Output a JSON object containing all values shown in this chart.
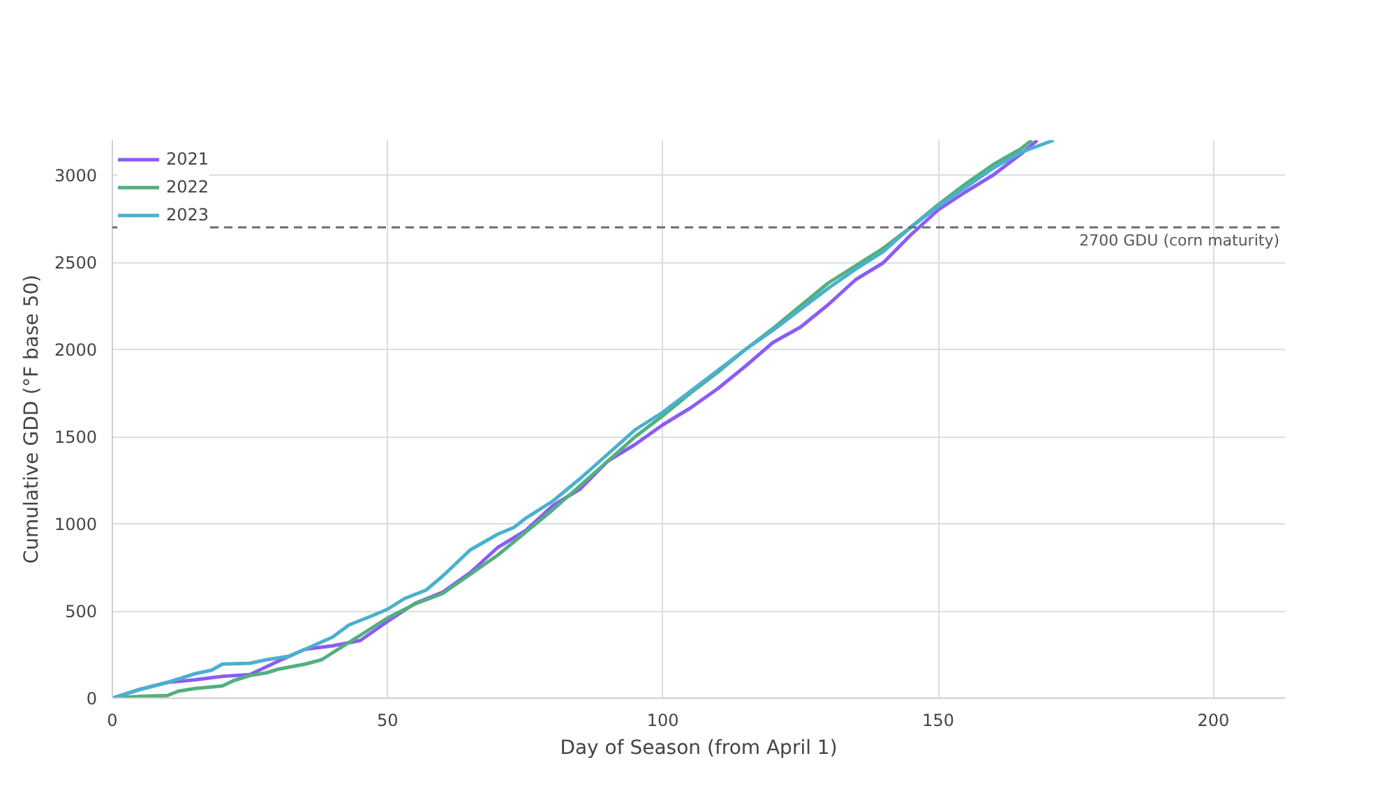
{
  "chart_data": {
    "type": "line",
    "xlabel": "Day of Season (from April 1)",
    "ylabel": "Cumulative GDD (°F base 50)",
    "xlim": [
      0,
      213
    ],
    "ylim": [
      0,
      3200
    ],
    "xticks": [
      0,
      50,
      100,
      150,
      200
    ],
    "yticks": [
      0,
      500,
      1000,
      1500,
      2000,
      2500,
      3000
    ],
    "grid": true,
    "legend": "top left",
    "line_style": "solid",
    "marker": "none",
    "ref_lines": [
      {
        "axis": "y",
        "value": 2700,
        "label": "2700 GDU (corn maturity)",
        "color": "#6b6b75",
        "line_style": "dashed"
      }
    ],
    "series": [
      {
        "name": "2021",
        "color": "#8b5cf6",
        "x": [
          0,
          5,
          10,
          15,
          20,
          25,
          30,
          35,
          40,
          45,
          50,
          55,
          60,
          65,
          70,
          75,
          80,
          85,
          90,
          95,
          100,
          105,
          110,
          115,
          120,
          125,
          130,
          135,
          140,
          145,
          150,
          155,
          160,
          165,
          168
        ],
        "values": [
          0,
          50,
          90,
          105,
          125,
          135,
          210,
          280,
          300,
          330,
          440,
          544,
          608,
          720,
          864,
          960,
          1104,
          1200,
          1360,
          1456,
          1568,
          1664,
          1776,
          1904,
          2040,
          2128,
          2256,
          2400,
          2496,
          2656,
          2800,
          2904,
          3000,
          3120,
          3200
        ]
      },
      {
        "name": "2022",
        "color": "#52b07e",
        "x": [
          0,
          5,
          10,
          12,
          15,
          20,
          22,
          25,
          28,
          30,
          35,
          38,
          40,
          45,
          50,
          55,
          60,
          65,
          70,
          75,
          80,
          85,
          90,
          95,
          100,
          105,
          110,
          115,
          120,
          125,
          130,
          135,
          140,
          145,
          150,
          155,
          160,
          165,
          167
        ],
        "values": [
          0,
          10,
          15,
          40,
          55,
          70,
          100,
          130,
          145,
          165,
          195,
          220,
          260,
          360,
          460,
          540,
          600,
          710,
          820,
          950,
          1080,
          1220,
          1360,
          1500,
          1620,
          1750,
          1870,
          2000,
          2120,
          2250,
          2380,
          2480,
          2580,
          2700,
          2830,
          2950,
          3060,
          3150,
          3200
        ]
      },
      {
        "name": "2023",
        "color": "#4bb0d0",
        "x": [
          0,
          5,
          10,
          15,
          18,
          20,
          25,
          28,
          32,
          35,
          40,
          43,
          47,
          50,
          53,
          57,
          60,
          65,
          70,
          73,
          75,
          80,
          85,
          90,
          95,
          100,
          105,
          110,
          115,
          120,
          125,
          130,
          135,
          140,
          145,
          150,
          155,
          160,
          165,
          171
        ],
        "values": [
          0,
          50,
          90,
          140,
          160,
          195,
          200,
          220,
          240,
          280,
          350,
          420,
          470,
          510,
          570,
          620,
          700,
          850,
          940,
          980,
          1030,
          1130,
          1260,
          1400,
          1540,
          1640,
          1760,
          1880,
          2000,
          2110,
          2230,
          2350,
          2460,
          2560,
          2700,
          2820,
          2930,
          3040,
          3130,
          3200
        ]
      }
    ]
  }
}
